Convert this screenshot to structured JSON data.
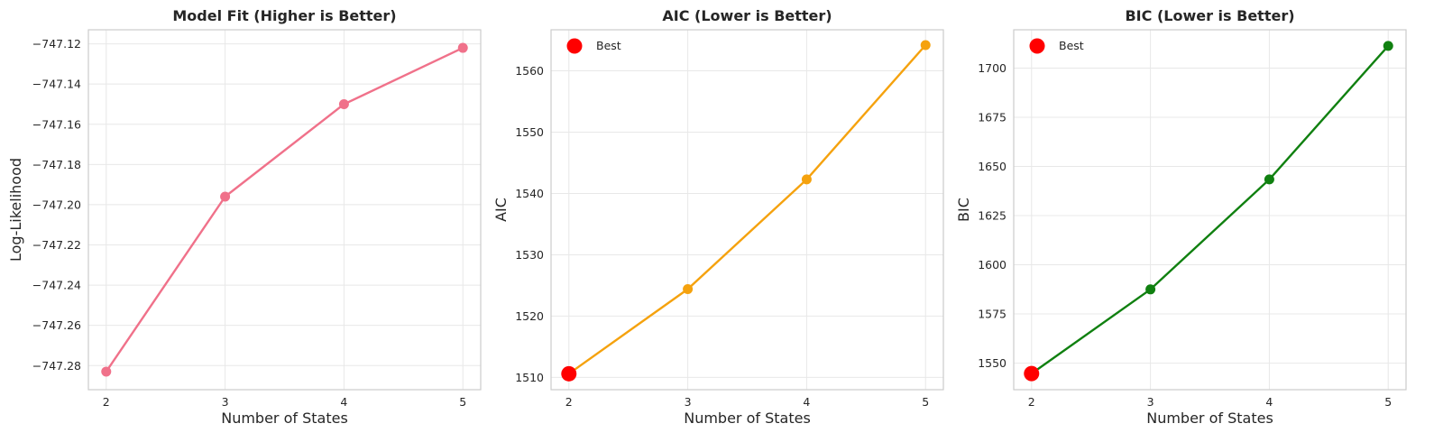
{
  "chart_data": [
    {
      "type": "line",
      "title": "Model Fit (Higher is Better)",
      "xlabel": "Number of States",
      "ylabel": "Log-Likelihood",
      "x": [
        2,
        3,
        4,
        5
      ],
      "xticks": [
        "2",
        "3",
        "4",
        "5"
      ],
      "xlim": [
        1.85,
        5.15
      ],
      "ylim": [
        -747.292,
        -747.113
      ],
      "yticks": [
        -747.28,
        -747.26,
        -747.24,
        -747.22,
        -747.2,
        -747.18,
        -747.16,
        -747.14,
        -747.12
      ],
      "ytick_labels": [
        "−747.28",
        "−747.26",
        "−747.24",
        "−747.22",
        "−747.20",
        "−747.18",
        "−747.16",
        "−747.14",
        "−747.12"
      ],
      "series": [
        {
          "values": [
            -747.283,
            -747.196,
            -747.15,
            -747.122
          ],
          "color": "#f0718a"
        }
      ],
      "grid": true
    },
    {
      "type": "line",
      "title": "AIC (Lower is Better)",
      "xlabel": "Number of States",
      "ylabel": "AIC",
      "x": [
        2,
        3,
        4,
        5
      ],
      "xticks": [
        "2",
        "3",
        "4",
        "5"
      ],
      "xlim": [
        1.85,
        5.15
      ],
      "ylim": [
        1508.0,
        1566.7
      ],
      "yticks": [
        1510,
        1520,
        1530,
        1540,
        1550,
        1560
      ],
      "ytick_labels": [
        "1510",
        "1520",
        "1530",
        "1540",
        "1550",
        "1560"
      ],
      "series": [
        {
          "values": [
            1510.6,
            1524.4,
            1542.3,
            1564.2
          ],
          "color": "#f5a20e"
        }
      ],
      "best": {
        "x": 2,
        "y": 1510.6,
        "label": "Best",
        "color": "#ff0000"
      },
      "legend": {
        "position": "top-left",
        "entries": [
          "Best"
        ]
      },
      "grid": true
    },
    {
      "type": "line",
      "title": "BIC (Lower is Better)",
      "xlabel": "Number of States",
      "ylabel": "BIC",
      "x": [
        2,
        3,
        4,
        5
      ],
      "xticks": [
        "2",
        "3",
        "4",
        "5"
      ],
      "xlim": [
        1.85,
        5.15
      ],
      "ylim": [
        1536.5,
        1719.5
      ],
      "yticks": [
        1550,
        1575,
        1600,
        1625,
        1650,
        1675,
        1700
      ],
      "ytick_labels": [
        "1550",
        "1575",
        "1600",
        "1625",
        "1650",
        "1675",
        "1700"
      ],
      "series": [
        {
          "values": [
            1544.7,
            1587.5,
            1643.4,
            1711.3
          ],
          "color": "#108010"
        }
      ],
      "best": {
        "x": 2,
        "y": 1544.7,
        "label": "Best",
        "color": "#ff0000"
      },
      "legend": {
        "position": "top-left",
        "entries": [
          "Best"
        ]
      },
      "grid": true
    }
  ]
}
